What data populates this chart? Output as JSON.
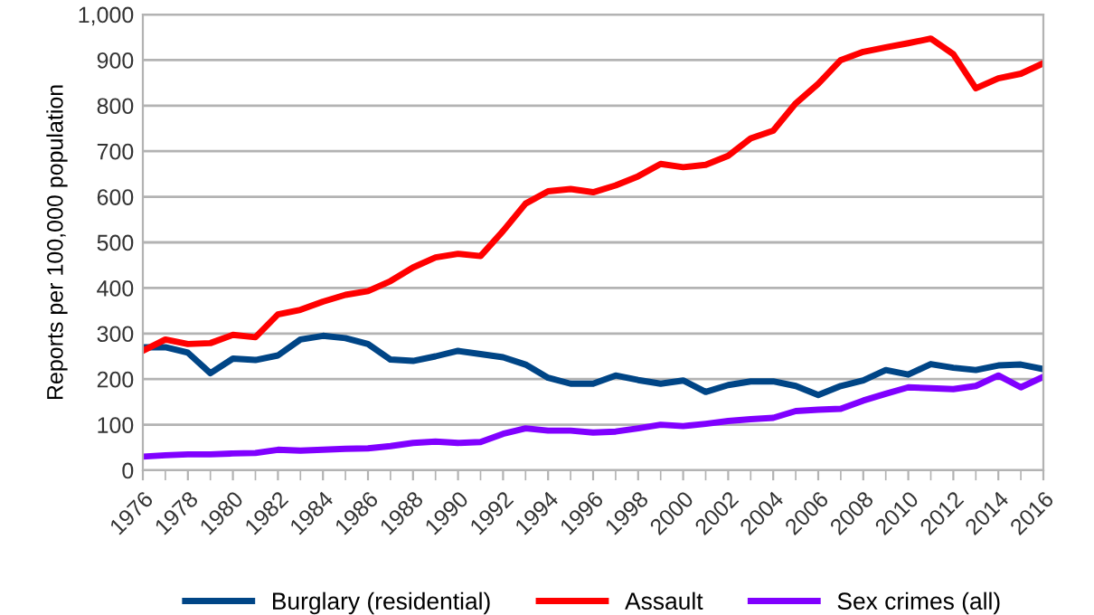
{
  "chart_data": {
    "type": "line",
    "ylabel": "Reports per 100,000 population",
    "x": [
      1976,
      1977,
      1978,
      1979,
      1980,
      1981,
      1982,
      1983,
      1984,
      1985,
      1986,
      1987,
      1988,
      1989,
      1990,
      1991,
      1992,
      1993,
      1994,
      1995,
      1996,
      1997,
      1998,
      1999,
      2000,
      2001,
      2002,
      2003,
      2004,
      2005,
      2006,
      2007,
      2008,
      2009,
      2010,
      2011,
      2012,
      2013,
      2014,
      2015,
      2016
    ],
    "series": [
      {
        "name": "Burglary (residential)",
        "color": "#004586",
        "values": [
          270,
          270,
          258,
          213,
          245,
          242,
          252,
          287,
          295,
          290,
          277,
          243,
          240,
          250,
          262,
          255,
          248,
          232,
          203,
          190,
          190,
          208,
          198,
          190,
          197,
          172,
          187,
          195,
          195,
          185,
          165,
          185,
          197,
          220,
          210,
          233,
          225,
          220,
          230,
          232,
          222
        ]
      },
      {
        "name": "Assault",
        "color": "#ff0000",
        "values": [
          262,
          287,
          277,
          279,
          297,
          292,
          342,
          352,
          370,
          385,
          393,
          415,
          445,
          467,
          475,
          470,
          525,
          585,
          612,
          617,
          610,
          625,
          645,
          672,
          665,
          670,
          690,
          728,
          745,
          805,
          848,
          900,
          918,
          928,
          937,
          947,
          913,
          838,
          860,
          870,
          893
        ]
      },
      {
        "name": "Sex crimes (all)",
        "color": "#8000ff",
        "values": [
          30,
          33,
          35,
          35,
          37,
          38,
          45,
          43,
          45,
          47,
          48,
          53,
          60,
          63,
          60,
          62,
          80,
          92,
          87,
          87,
          83,
          85,
          92,
          100,
          97,
          102,
          108,
          112,
          115,
          130,
          133,
          135,
          153,
          168,
          182,
          180,
          178,
          185,
          208,
          182,
          205
        ]
      }
    ],
    "xlim": [
      1976,
      2016
    ],
    "xticks": [
      1976,
      1978,
      1980,
      1982,
      1984,
      1986,
      1988,
      1990,
      1992,
      1994,
      1996,
      1998,
      2000,
      2002,
      2004,
      2006,
      2008,
      2010,
      2012,
      2014,
      2016
    ],
    "ylim": [
      0,
      1000
    ],
    "yticks": [
      0,
      100,
      200,
      300,
      400,
      500,
      600,
      700,
      800,
      900,
      {
        "value": 1000,
        "label": "1,000"
      }
    ],
    "grid": "y",
    "legend": "bottom",
    "marker": "none",
    "line_style": "solid"
  }
}
